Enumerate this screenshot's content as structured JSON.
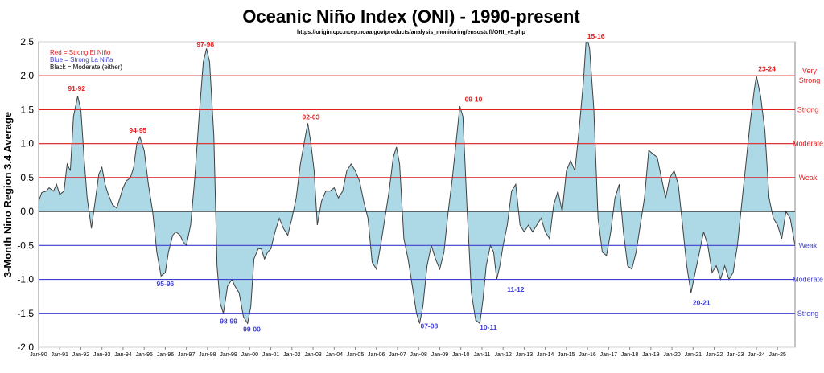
{
  "chart_data": {
    "type": "area",
    "title": "Oceanic Niño Index (ONI) - 1990-present",
    "subtitle": "https://origin.cpc.ncep.noaa.gov/products/analysis_monitoring/ensostuff/ONI_v5.php",
    "ylabel": "3-Month Nino Region 3.4 Average",
    "ylim": [
      -2.0,
      2.5
    ],
    "yticks": [
      "2.5",
      "2.0",
      "1.5",
      "1.0",
      "0.5",
      "0.0",
      "-0.5",
      "-1.0",
      "-1.5",
      "-2.0"
    ],
    "xlim": [
      1990.0,
      2025.83
    ],
    "xticks": [
      "Jan-90",
      "Jan-91",
      "Jan-92",
      "Jan-93",
      "Jan-94",
      "Jan-95",
      "Jan-96",
      "Jan-97",
      "Jan-98",
      "Jan-99",
      "Jan-00",
      "Jan-01",
      "Jan-02",
      "Jan-03",
      "Jan-04",
      "Jan-05",
      "Jan-06",
      "Jan-07",
      "Jan-08",
      "Jan-09",
      "Jan-10",
      "Jan-11",
      "Jan-12",
      "Jan-13",
      "Jan-14",
      "Jan-15",
      "Jan-16",
      "Jan-17",
      "Jan-18",
      "Jan-19",
      "Jan-20",
      "Jan-21",
      "Jan-22",
      "Jan-23",
      "Jan-24",
      "Jan-25"
    ],
    "grid": "horizontal",
    "fill_color": "#add8e6",
    "line_color": "#404040",
    "legend": [
      {
        "text": "Red = Strong  El Niño",
        "color": "#e02020"
      },
      {
        "text": "Blue = Strong  La Niña",
        "color": "#4040d0"
      },
      {
        "text": "Black = Moderate  (either)",
        "color": "#000000"
      }
    ],
    "thresholds": [
      {
        "value": 2.0,
        "label": "Very Strong",
        "color": "#e02020"
      },
      {
        "value": 1.5,
        "label": "Strong",
        "color": "#e02020"
      },
      {
        "value": 1.0,
        "label": "Moderate",
        "color": "#e02020"
      },
      {
        "value": 0.5,
        "label": "Weak",
        "color": "#e02020"
      },
      {
        "value": -0.5,
        "label": "Weak",
        "color": "#4040d0"
      },
      {
        "value": -1.0,
        "label": "Moderate",
        "color": "#4040d0"
      },
      {
        "value": -1.5,
        "label": "Strong",
        "color": "#4040d0"
      }
    ],
    "annotations": [
      {
        "text": "91-92",
        "x": 1991.8,
        "y": 1.78,
        "color": "#e02020"
      },
      {
        "text": "94-95",
        "x": 1994.7,
        "y": 1.16,
        "color": "#e02020"
      },
      {
        "text": "95-96",
        "x": 1996.0,
        "y": -1.1,
        "color": "#4040d0"
      },
      {
        "text": "97-98",
        "x": 1997.9,
        "y": 2.43,
        "color": "#e02020"
      },
      {
        "text": "98-99",
        "x": 1999.0,
        "y": -1.65,
        "color": "#4040d0"
      },
      {
        "text": "99-00",
        "x": 2000.1,
        "y": -1.77,
        "color": "#4040d0"
      },
      {
        "text": "02-03",
        "x": 2002.9,
        "y": 1.36,
        "color": "#e02020"
      },
      {
        "text": "07-08",
        "x": 2008.5,
        "y": -1.72,
        "color": "#4040d0"
      },
      {
        "text": "09-10",
        "x": 2010.6,
        "y": 1.62,
        "color": "#e02020"
      },
      {
        "text": "10-11",
        "x": 2011.3,
        "y": -1.74,
        "color": "#4040d0"
      },
      {
        "text": "11-12",
        "x": 2012.6,
        "y": -1.18,
        "color": "#4040d0"
      },
      {
        "text": "15-16",
        "x": 2016.4,
        "y": 2.55,
        "color": "#e02020"
      },
      {
        "text": "20-21",
        "x": 2021.4,
        "y": -1.38,
        "color": "#4040d0"
      },
      {
        "text": "23-24",
        "x": 2024.5,
        "y": 2.07,
        "color": "#e02020"
      }
    ],
    "series": [
      {
        "x": [
          1990.0,
          1990.15,
          1990.35,
          1990.5,
          1990.7,
          1990.85,
          1991.0,
          1991.2,
          1991.35,
          1991.5,
          1991.65,
          1991.85,
          1992.0,
          1992.15,
          1992.3,
          1992.5,
          1992.7,
          1992.85,
          1993.0,
          1993.15,
          1993.3,
          1993.5,
          1993.7,
          1993.85,
          1994.0,
          1994.15,
          1994.35,
          1994.5,
          1994.65,
          1994.8,
          1995.0,
          1995.2,
          1995.4,
          1995.6,
          1995.8,
          1996.0,
          1996.15,
          1996.35,
          1996.5,
          1996.7,
          1996.85,
          1997.0,
          1997.2,
          1997.4,
          1997.6,
          1997.8,
          1997.95,
          1998.1,
          1998.3,
          1998.45,
          1998.6,
          1998.75,
          1998.95,
          1999.15,
          1999.3,
          1999.5,
          1999.7,
          1999.9,
          2000.05,
          2000.2,
          2000.4,
          2000.55,
          2000.7,
          2000.85,
          2001.0,
          2001.2,
          2001.4,
          2001.6,
          2001.8,
          2002.0,
          2002.2,
          2002.4,
          2002.6,
          2002.75,
          2002.9,
          2003.05,
          2003.2,
          2003.4,
          2003.6,
          2003.8,
          2004.0,
          2004.2,
          2004.4,
          2004.6,
          2004.8,
          2005.0,
          2005.2,
          2005.4,
          2005.6,
          2005.8,
          2006.0,
          2006.2,
          2006.4,
          2006.6,
          2006.8,
          2006.95,
          2007.1,
          2007.3,
          2007.5,
          2007.7,
          2007.9,
          2008.05,
          2008.2,
          2008.4,
          2008.6,
          2008.8,
          2009.0,
          2009.2,
          2009.4,
          2009.6,
          2009.8,
          2009.95,
          2010.1,
          2010.3,
          2010.5,
          2010.7,
          2010.9,
          2011.05,
          2011.2,
          2011.4,
          2011.55,
          2011.7,
          2011.85,
          2012.0,
          2012.2,
          2012.4,
          2012.6,
          2012.8,
          2013.0,
          2013.2,
          2013.4,
          2013.6,
          2013.8,
          2014.0,
          2014.2,
          2014.4,
          2014.6,
          2014.8,
          2015.0,
          2015.2,
          2015.4,
          2015.6,
          2015.8,
          2015.95,
          2016.1,
          2016.3,
          2016.5,
          2016.7,
          2016.9,
          2017.1,
          2017.3,
          2017.5,
          2017.7,
          2017.9,
          2018.1,
          2018.3,
          2018.5,
          2018.7,
          2018.9,
          2019.1,
          2019.3,
          2019.5,
          2019.7,
          2019.9,
          2020.1,
          2020.3,
          2020.5,
          2020.7,
          2020.9,
          2021.1,
          2021.3,
          2021.5,
          2021.7,
          2021.9,
          2022.1,
          2022.3,
          2022.5,
          2022.7,
          2022.9,
          2023.1,
          2023.3,
          2023.5,
          2023.7,
          2023.9,
          2024.0,
          2024.2,
          2024.4,
          2024.6,
          2024.8,
          2025.0,
          2025.2,
          2025.4,
          2025.6,
          2025.83
        ],
        "y": [
          0.15,
          0.28,
          0.3,
          0.35,
          0.3,
          0.4,
          0.25,
          0.3,
          0.7,
          0.6,
          1.4,
          1.7,
          1.5,
          0.8,
          0.2,
          -0.25,
          0.2,
          0.55,
          0.65,
          0.4,
          0.25,
          0.1,
          0.05,
          0.2,
          0.35,
          0.45,
          0.5,
          0.65,
          1.0,
          1.1,
          0.9,
          0.4,
          0.0,
          -0.6,
          -0.95,
          -0.9,
          -0.6,
          -0.35,
          -0.3,
          -0.35,
          -0.45,
          -0.5,
          -0.2,
          0.5,
          1.4,
          2.2,
          2.4,
          2.2,
          1.1,
          -0.8,
          -1.35,
          -1.5,
          -1.1,
          -1.0,
          -1.1,
          -1.2,
          -1.55,
          -1.65,
          -1.4,
          -0.7,
          -0.55,
          -0.55,
          -0.7,
          -0.6,
          -0.55,
          -0.3,
          -0.1,
          -0.25,
          -0.35,
          -0.1,
          0.2,
          0.7,
          1.05,
          1.3,
          1.0,
          0.6,
          -0.2,
          0.15,
          0.3,
          0.3,
          0.35,
          0.2,
          0.3,
          0.6,
          0.7,
          0.6,
          0.45,
          0.15,
          -0.1,
          -0.75,
          -0.85,
          -0.5,
          -0.1,
          0.3,
          0.8,
          0.95,
          0.7,
          -0.4,
          -0.7,
          -1.1,
          -1.5,
          -1.65,
          -1.4,
          -0.8,
          -0.5,
          -0.7,
          -0.85,
          -0.6,
          0.0,
          0.5,
          1.1,
          1.55,
          1.4,
          0.0,
          -1.2,
          -1.6,
          -1.65,
          -1.3,
          -0.8,
          -0.5,
          -0.6,
          -1.0,
          -0.8,
          -0.5,
          -0.2,
          0.3,
          0.4,
          -0.2,
          -0.3,
          -0.2,
          -0.3,
          -0.2,
          -0.1,
          -0.3,
          -0.4,
          0.1,
          0.3,
          0.0,
          0.6,
          0.75,
          0.6,
          1.2,
          1.9,
          2.6,
          2.4,
          1.5,
          -0.1,
          -0.6,
          -0.65,
          -0.3,
          0.2,
          0.4,
          -0.3,
          -0.8,
          -0.85,
          -0.6,
          -0.2,
          0.2,
          0.9,
          0.85,
          0.8,
          0.5,
          0.2,
          0.5,
          0.6,
          0.4,
          -0.2,
          -0.8,
          -1.2,
          -0.9,
          -0.6,
          -0.3,
          -0.5,
          -0.9,
          -0.8,
          -1.0,
          -0.8,
          -1.0,
          -0.9,
          -0.5,
          0.1,
          0.7,
          1.3,
          1.8,
          2.0,
          1.7,
          1.2,
          0.2,
          -0.1,
          -0.2,
          -0.4,
          0.0,
          -0.1,
          -0.5
        ]
      }
    ]
  }
}
